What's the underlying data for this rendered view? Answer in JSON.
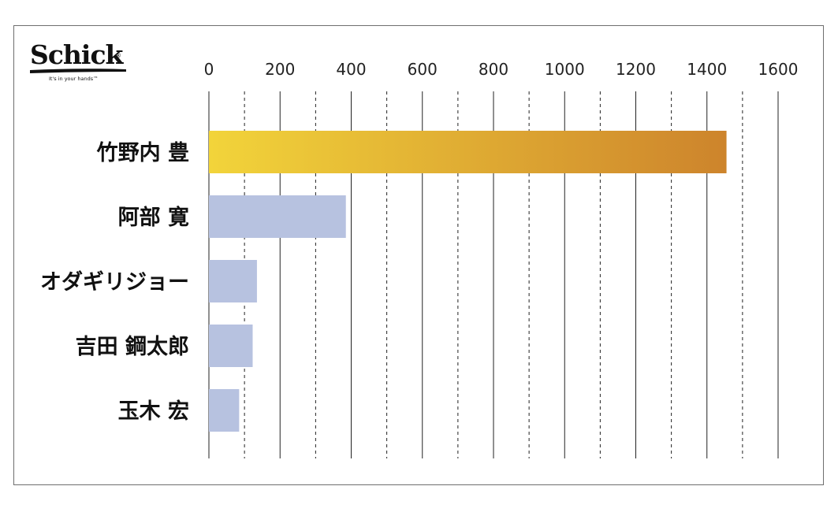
{
  "logo": {
    "brand": "Schick",
    "registered": "®",
    "tagline": "It's in your hands™"
  },
  "chart_data": {
    "type": "bar",
    "orientation": "horizontal",
    "title": "",
    "xlabel": "",
    "ylabel": "",
    "xlim": [
      0,
      1600
    ],
    "ticks": [
      0,
      200,
      400,
      600,
      800,
      1000,
      1200,
      1400,
      1600
    ],
    "grid": true,
    "categories": [
      "竹野内 豊",
      "阿部 寛",
      "オダギリジョー",
      "吉田 鋼太郎",
      "玉木 宏"
    ],
    "values": [
      1455,
      385,
      135,
      123,
      85
    ],
    "colors": {
      "highlight_start": "#f2d43a",
      "highlight_end": "#cd842c",
      "default": "#b7c2e0",
      "grid": "#222222"
    }
  }
}
